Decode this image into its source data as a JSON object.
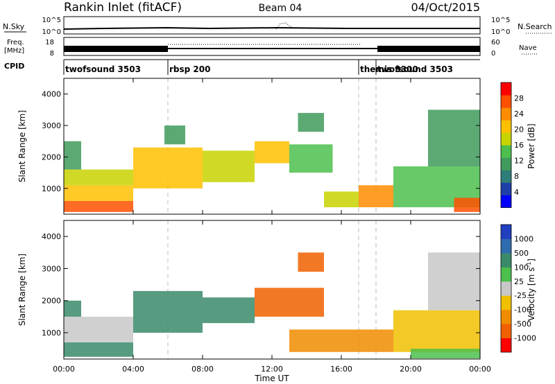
{
  "header": {
    "title": "Rankin Inlet (fitACF)",
    "beam": "Beam 04",
    "date": "04/Oct/2015"
  },
  "top_strip": {
    "left_label": "N.Sky",
    "left_ticks": [
      "10^5",
      "10^0"
    ],
    "right_ticks": [
      "10^5",
      "10^0"
    ],
    "right_label": "N.Search"
  },
  "freq_strip": {
    "left_label_1": "Freq.",
    "left_label_2": "[MHz]",
    "left_ticks": [
      "18",
      "8"
    ],
    "right_ticks": [
      "60",
      "0"
    ],
    "right_label": "Nave"
  },
  "cpid": {
    "label": "CPID",
    "modes": [
      {
        "name": "twofsound 3503",
        "start": 0.0
      },
      {
        "name": "rbsp 200",
        "start": 6.0
      },
      {
        "name": "themis 3300",
        "start": 17.0
      },
      {
        "name": "twofsound 3503",
        "start": 18.0
      }
    ]
  },
  "colors": {
    "power_scale": [
      "#0000ff",
      "#1f3fa8",
      "#2e7d78",
      "#3f9a5c",
      "#4cbf4c",
      "#c8d400",
      "#ffc000",
      "#ff8c00",
      "#ff5000",
      "#ff0000"
    ],
    "velocity_scale": [
      "#2040c0",
      "#2e6cad",
      "#3a8a6a",
      "#4cbf4c",
      "#c8c8c8",
      "#f0c000",
      "#f08c00",
      "#f06000",
      "#ff0000"
    ]
  },
  "chart_data": [
    {
      "type": "heatmap",
      "quantity": "power",
      "ylabel": "Slant Range [km]",
      "ylim": [
        180,
        4500
      ],
      "xlim": [
        0,
        24
      ],
      "yticks": [
        {
          "v": 1000,
          "label": "1000"
        },
        {
          "v": 2000,
          "label": "2000"
        },
        {
          "v": 3000,
          "label": "3000"
        },
        {
          "v": 4000,
          "label": "4000"
        }
      ],
      "colorbar": {
        "label": "Power [dB]",
        "range": [
          0,
          32
        ],
        "ticks": [
          {
            "v": 4,
            "label": "4"
          },
          {
            "v": 8,
            "label": "8"
          },
          {
            "v": 12,
            "label": "12"
          },
          {
            "v": 16,
            "label": "16"
          },
          {
            "v": 20,
            "label": "20"
          },
          {
            "v": 24,
            "label": "24"
          },
          {
            "v": 28,
            "label": "28"
          }
        ]
      },
      "regions": [
        {
          "t0": 0.0,
          "t1": 4.0,
          "r0": 250,
          "r1": 600,
          "level": 28
        },
        {
          "t0": 0.0,
          "t1": 4.0,
          "r0": 600,
          "r1": 1100,
          "level": 22
        },
        {
          "t0": 0.0,
          "t1": 4.0,
          "r0": 1100,
          "r1": 1600,
          "level": 16
        },
        {
          "t0": 0.0,
          "t1": 1.0,
          "r0": 1600,
          "r1": 2500,
          "level": 12
        },
        {
          "t0": 4.0,
          "t1": 8.0,
          "r0": 1000,
          "r1": 2300,
          "level": 22
        },
        {
          "t0": 5.8,
          "t1": 7.0,
          "r0": 2400,
          "r1": 3000,
          "level": 10
        },
        {
          "t0": 8.0,
          "t1": 11.0,
          "r0": 1200,
          "r1": 2200,
          "level": 16
        },
        {
          "t0": 11.0,
          "t1": 13.0,
          "r0": 1800,
          "r1": 2500,
          "level": 22
        },
        {
          "t0": 13.0,
          "t1": 15.5,
          "r0": 1500,
          "r1": 2400,
          "level": 14
        },
        {
          "t0": 13.5,
          "t1": 15.0,
          "r0": 2800,
          "r1": 3400,
          "level": 12
        },
        {
          "t0": 15.0,
          "t1": 17.0,
          "r0": 400,
          "r1": 900,
          "level": 18
        },
        {
          "t0": 17.0,
          "t1": 19.0,
          "r0": 400,
          "r1": 1100,
          "level": 24
        },
        {
          "t0": 19.0,
          "t1": 24.0,
          "r0": 400,
          "r1": 1700,
          "level": 14
        },
        {
          "t0": 21.0,
          "t1": 24.0,
          "r0": 1700,
          "r1": 3500,
          "level": 10
        },
        {
          "t0": 22.5,
          "t1": 24.0,
          "r0": 250,
          "r1": 700,
          "level": 28
        }
      ]
    },
    {
      "type": "heatmap",
      "quantity": "velocity",
      "ylabel": "Slant Range [km]",
      "xlabel": "Time UT",
      "ylim": [
        180,
        4500
      ],
      "xlim": [
        0,
        24
      ],
      "yticks": [
        {
          "v": 1000,
          "label": "1000"
        },
        {
          "v": 2000,
          "label": "2000"
        },
        {
          "v": 3000,
          "label": "3000"
        },
        {
          "v": 4000,
          "label": "4000"
        }
      ],
      "xticks": [
        {
          "v": 0,
          "label": "00:00"
        },
        {
          "v": 4,
          "label": "04:00"
        },
        {
          "v": 8,
          "label": "08:00"
        },
        {
          "v": 12,
          "label": "12:00"
        },
        {
          "v": 16,
          "label": "16:00"
        },
        {
          "v": 20,
          "label": "20:00"
        },
        {
          "v": 24,
          "label": "00:00"
        }
      ],
      "colorbar": {
        "label_main": "Velocity [m s",
        "label_sup": "-1",
        "label_end": "]",
        "ticks": [
          "1000",
          "500",
          "100",
          "25",
          "-25",
          "-100",
          "-500",
          "-1000"
        ]
      },
      "regions": [
        {
          "t0": 0.0,
          "t1": 4.0,
          "r0": 250,
          "r1": 700,
          "level": 2
        },
        {
          "t0": 0.0,
          "t1": 4.0,
          "r0": 700,
          "r1": 1500,
          "level": 4
        },
        {
          "t0": 0.0,
          "t1": 1.0,
          "r0": 1500,
          "r1": 2000,
          "level": 2
        },
        {
          "t0": 4.0,
          "t1": 8.0,
          "r0": 1000,
          "r1": 2300,
          "level": 2
        },
        {
          "t0": 8.0,
          "t1": 11.0,
          "r0": 1300,
          "r1": 2100,
          "level": 2
        },
        {
          "t0": 11.0,
          "t1": 15.0,
          "r0": 1500,
          "r1": 2400,
          "level": 7
        },
        {
          "t0": 13.5,
          "t1": 15.0,
          "r0": 2900,
          "r1": 3500,
          "level": 7
        },
        {
          "t0": 13.0,
          "t1": 19.0,
          "r0": 400,
          "r1": 1100,
          "level": 6
        },
        {
          "t0": 19.0,
          "t1": 24.0,
          "r0": 400,
          "r1": 1700,
          "level": 5
        },
        {
          "t0": 21.0,
          "t1": 24.0,
          "r0": 1700,
          "r1": 3500,
          "level": 4
        },
        {
          "t0": 20.0,
          "t1": 24.0,
          "r0": 200,
          "r1": 500,
          "level": 3
        }
      ]
    }
  ]
}
